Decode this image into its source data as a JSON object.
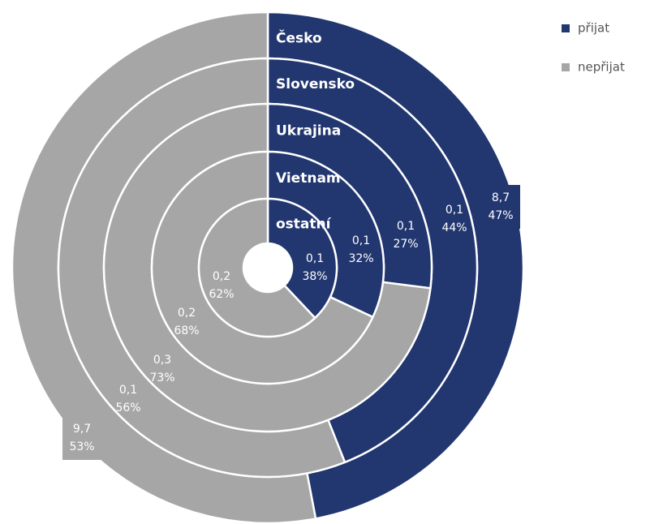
{
  "chart_data": {
    "type": "multi-donut",
    "series": [
      {
        "name": "přijat",
        "color": "#22366f"
      },
      {
        "name": "nepřijat",
        "color": "#a6a6a6"
      }
    ],
    "rings": [
      {
        "name": "Česko",
        "values": [
          8.7,
          9.7
        ],
        "value_labels": [
          "8,7",
          "9,7"
        ],
        "percents": [
          47,
          53
        ],
        "percent_labels": [
          "47%",
          "53%"
        ]
      },
      {
        "name": "Slovensko",
        "values": [
          0.1,
          0.1
        ],
        "value_labels": [
          "0,1",
          "0,1"
        ],
        "percents": [
          44,
          56
        ],
        "percent_labels": [
          "44%",
          "56%"
        ]
      },
      {
        "name": "Ukrajina",
        "values": [
          0.1,
          0.3
        ],
        "value_labels": [
          "0,1",
          "0,3"
        ],
        "percents": [
          27,
          73
        ],
        "percent_labels": [
          "27%",
          "73%"
        ]
      },
      {
        "name": "Vietnam",
        "values": [
          0.1,
          0.2
        ],
        "value_labels": [
          "0,1",
          "0,2"
        ],
        "percents": [
          32,
          68
        ],
        "percent_labels": [
          "32%",
          "68%"
        ]
      },
      {
        "name": "ostatní",
        "values": [
          0.1,
          0.2
        ],
        "value_labels": [
          "0,1",
          "0,2"
        ],
        "percents": [
          38,
          62
        ],
        "percent_labels": [
          "38%",
          "62%"
        ]
      }
    ]
  }
}
